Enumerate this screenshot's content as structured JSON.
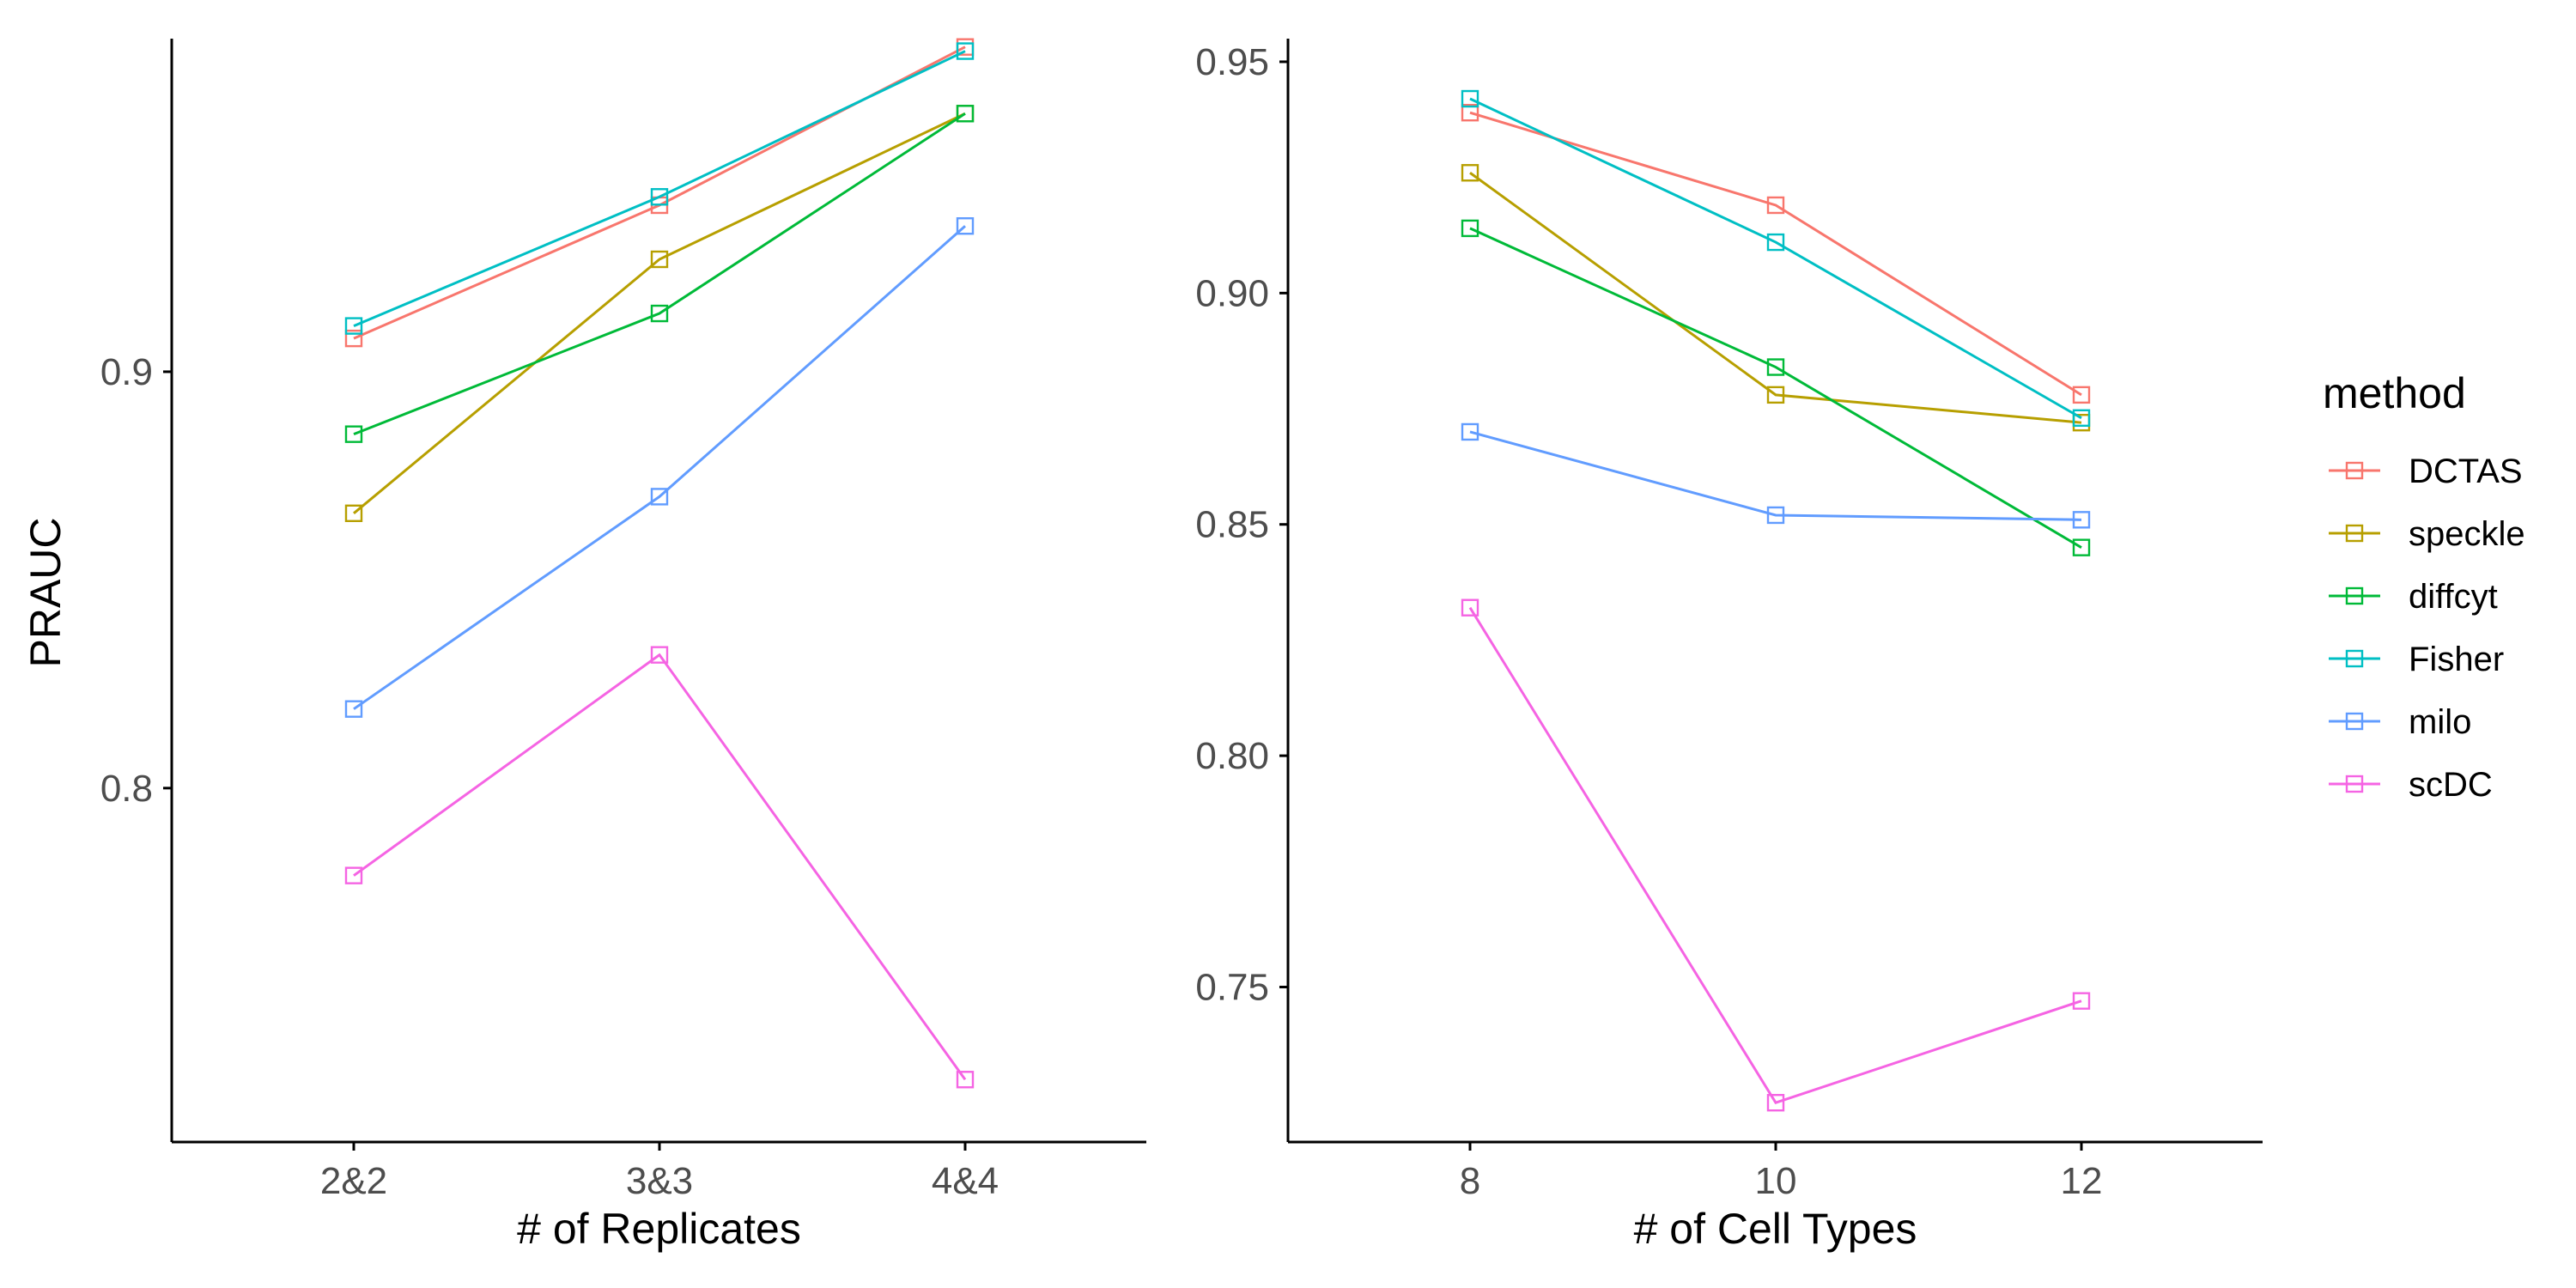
{
  "chart_data": [
    {
      "type": "line",
      "xlabel": "# of Replicates",
      "ylabel": "PRAUC",
      "categories": [
        "2&2",
        "3&3",
        "4&4"
      ],
      "ylim": [
        0.715,
        0.98
      ],
      "yticks": [
        0.8,
        0.9
      ],
      "ytick_labels": [
        "0.8",
        "0.9"
      ],
      "series": [
        {
          "name": "DCTAS",
          "values": [
            0.908,
            0.94,
            0.978
          ]
        },
        {
          "name": "speckle",
          "values": [
            0.866,
            0.927,
            0.962
          ]
        },
        {
          "name": "diffcyt",
          "values": [
            0.885,
            0.914,
            0.962
          ]
        },
        {
          "name": "Fisher",
          "values": [
            0.911,
            0.942,
            0.977
          ]
        },
        {
          "name": "milo",
          "values": [
            0.819,
            0.87,
            0.935
          ]
        },
        {
          "name": "scDC",
          "values": [
            0.779,
            0.832,
            0.73
          ]
        }
      ],
      "grid": false
    },
    {
      "type": "line",
      "xlabel": "# of Cell Types",
      "ylabel": "",
      "categories": [
        "8",
        "10",
        "12"
      ],
      "ylim": [
        0.7165,
        0.955
      ],
      "yticks": [
        0.75,
        0.8,
        0.85,
        0.9,
        0.95
      ],
      "ytick_labels": [
        "0.75",
        "0.80",
        "0.85",
        "0.90",
        "0.95"
      ],
      "series": [
        {
          "name": "DCTAS",
          "values": [
            0.939,
            0.919,
            0.878
          ]
        },
        {
          "name": "speckle",
          "values": [
            0.926,
            0.878,
            0.872
          ]
        },
        {
          "name": "diffcyt",
          "values": [
            0.914,
            0.884,
            0.845
          ]
        },
        {
          "name": "Fisher",
          "values": [
            0.942,
            0.911,
            0.873
          ]
        },
        {
          "name": "milo",
          "values": [
            0.87,
            0.852,
            0.851
          ]
        },
        {
          "name": "scDC",
          "values": [
            0.832,
            0.725,
            0.747
          ]
        }
      ],
      "grid": false
    }
  ],
  "legend": {
    "title": "method",
    "placement": "right",
    "items": [
      {
        "label": "DCTAS",
        "color": "#F8766D"
      },
      {
        "label": "speckle",
        "color": "#B79F00"
      },
      {
        "label": "diffcyt",
        "color": "#00BA38"
      },
      {
        "label": "Fisher",
        "color": "#00BFC4"
      },
      {
        "label": "milo",
        "color": "#619CFF"
      },
      {
        "label": "scDC",
        "color": "#F564E3"
      }
    ]
  }
}
